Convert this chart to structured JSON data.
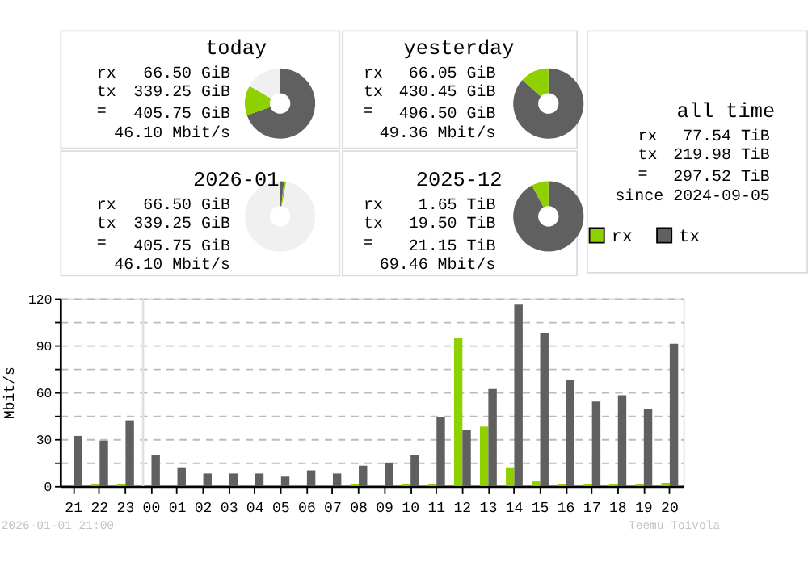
{
  "chart_data": [
    {
      "type": "donut",
      "title": "today",
      "categories": [
        null,
        null,
        null
      ],
      "values": [
        69.6,
        13.7,
        16.7
      ],
      "colors": [
        "#606060",
        "#8fd100",
        "#f0f0f0"
      ],
      "annotations": [
        "rx",
        "66.50 GiB",
        "tx",
        "339.25 GiB",
        "=",
        "405.75 GiB",
        "46.10 Mbit/s"
      ]
    },
    {
      "type": "donut",
      "title": "yesterday",
      "categories": [
        null,
        null
      ],
      "values": [
        86.7,
        13.3
      ],
      "colors": [
        "#606060",
        "#8fd100"
      ],
      "annotations": [
        "rx",
        "66.05 GiB",
        "tx",
        "430.45 GiB",
        "=",
        "496.50 GiB",
        "49.36 Mbit/s"
      ]
    },
    {
      "type": "other",
      "title": "all time",
      "annotations": [
        "rx",
        "77.54 TiB",
        "tx",
        "219.98 TiB",
        "=",
        "297.52 TiB",
        "since 2024-09-05"
      ]
    },
    {
      "type": "donut",
      "title": "2026-01",
      "categories": [
        null,
        null,
        null
      ],
      "values": [
        1.8,
        1.0,
        97.2
      ],
      "colors": [
        "#606060",
        "#8fd100",
        "#f0f0f0"
      ],
      "annotations": [
        "rx",
        "66.50 GiB",
        "tx",
        "339.25 GiB",
        "=",
        "405.75 GiB",
        "46.10 Mbit/s"
      ]
    },
    {
      "type": "donut",
      "title": "2025-12",
      "categories": [
        null,
        null
      ],
      "values": [
        92.2,
        7.8
      ],
      "colors": [
        "#606060",
        "#8fd100"
      ],
      "annotations": [
        "rx",
        "1.65 TiB",
        "tx",
        "19.50 TiB",
        "=",
        "21.15 TiB",
        "69.46 Mbit/s"
      ]
    },
    {
      "type": "bar",
      "ylabel": "Mbit/s",
      "categories": [
        "21",
        "22",
        "23",
        "00",
        "01",
        "02",
        "03",
        "04",
        "05",
        "06",
        "07",
        "08",
        "09",
        "10",
        "11",
        "12",
        "13",
        "14",
        "15",
        "16",
        "17",
        "18",
        "19",
        "20"
      ],
      "series": [
        {
          "name": "rx",
          "color": "#8fd100",
          "values": [
            0,
            1,
            1,
            0,
            0,
            0,
            0,
            0,
            0,
            0,
            0,
            1,
            0,
            1,
            1,
            95,
            38,
            12,
            3,
            1,
            1,
            1,
            1,
            2
          ]
        },
        {
          "name": "tx",
          "color": "#606060",
          "values": [
            32,
            29,
            42,
            20,
            12,
            8,
            8,
            8,
            6,
            10,
            8,
            13,
            15,
            20,
            44,
            36,
            62,
            116,
            98,
            68,
            54,
            58,
            49,
            91
          ]
        }
      ],
      "ylim": [
        0,
        120
      ],
      "yticks": [
        0,
        {
          "value": 15,
          "label": null
        },
        30,
        {
          "value": 45,
          "label": null
        },
        60,
        {
          "value": 75,
          "label": null
        },
        90,
        {
          "value": 105,
          "label": null
        },
        120
      ],
      "grid": "y",
      "legend": "top right",
      "ref_lines": [
        {
          "axis": "x",
          "value": "00",
          "color": "#e0e0e0"
        }
      ],
      "annotations": [
        "2026-01-01 21:00",
        "Teemu Toivola"
      ]
    }
  ]
}
